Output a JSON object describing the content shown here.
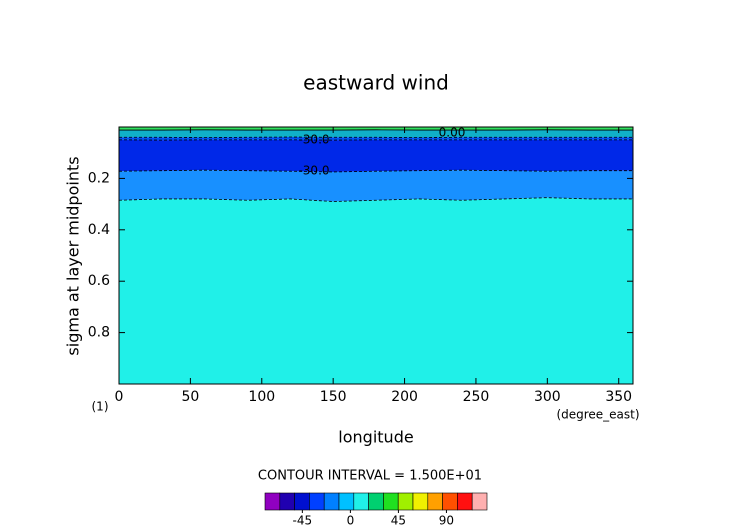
{
  "chart_data": {
    "type": "contour",
    "title": "eastward wind",
    "xlabel": "longitude",
    "ylabel": "sigma at layer midpoints",
    "xunit": "(degree_east)",
    "yunit": "(1)",
    "x": [
      0,
      30,
      60,
      90,
      120,
      150,
      180,
      210,
      240,
      270,
      300,
      330,
      360
    ],
    "xlim": [
      0,
      360
    ],
    "xticks": [
      0,
      50,
      100,
      150,
      200,
      250,
      300,
      350
    ],
    "ylim": [
      1,
      0
    ],
    "yticks": [
      0.2,
      0.4,
      0.6,
      0.8
    ],
    "contours": [
      {
        "level": 0,
        "label": "0.00",
        "values": [
          0.012,
          0.012,
          0.011,
          0.012,
          0.012,
          0.012,
          0.011,
          0.012,
          0.012,
          0.012,
          0.011,
          0.012,
          0.012
        ]
      },
      {
        "level": -15,
        "values": [
          0.04,
          0.04,
          0.041,
          0.04,
          0.039,
          0.04,
          0.04,
          0.041,
          0.04,
          0.04,
          0.04,
          0.04,
          0.04
        ]
      },
      {
        "level": -30,
        "label": "-30.0",
        "values": [
          0.05,
          0.051,
          0.05,
          0.05,
          0.05,
          0.051,
          0.05,
          0.05,
          0.05,
          0.05,
          0.05,
          0.05,
          0.05
        ]
      },
      {
        "level": -30,
        "label": "-30.0",
        "values": [
          0.172,
          0.17,
          0.168,
          0.17,
          0.172,
          0.175,
          0.172,
          0.17,
          0.168,
          0.17,
          0.172,
          0.17,
          0.17
        ]
      },
      {
        "level": -15,
        "values": [
          0.285,
          0.28,
          0.28,
          0.285,
          0.28,
          0.29,
          0.285,
          0.28,
          0.285,
          0.28,
          0.275,
          0.28,
          0.28
        ]
      }
    ],
    "fills": [
      "#30e060",
      "#10b0c8",
      "#0050f0",
      "#0028e8",
      "#1890ff",
      "#20f0e8"
    ],
    "annotation": "CONTOUR INTERVAL = 1.500E+01",
    "colorbar": {
      "lim": [
        -80,
        128
      ],
      "ticks": [
        -45,
        0,
        45,
        90
      ],
      "colors": [
        "#9000c0",
        "#2000b0",
        "#0010d0",
        "#0040ff",
        "#0080ff",
        "#00c0ff",
        "#20f0e8",
        "#00d070",
        "#20e020",
        "#a0f000",
        "#f0f000",
        "#ffa000",
        "#ff5000",
        "#ff1010",
        "#ffb0b0"
      ]
    }
  }
}
